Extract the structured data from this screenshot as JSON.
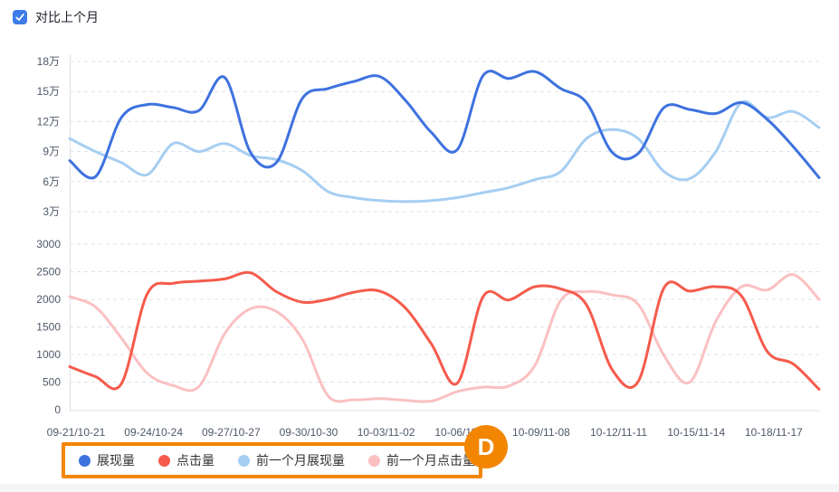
{
  "header": {
    "compare_label": "对比上个月",
    "checkbox_checked": true,
    "checkbox_color": "#3D7CE8"
  },
  "legend": {
    "items": [
      {
        "label": "展现量",
        "color": "#3E72DF"
      },
      {
        "label": "点击量",
        "color": "#F55B4C"
      },
      {
        "label": "前一个月展现量",
        "color": "#A6CEF2"
      },
      {
        "label": "前一个月点击量",
        "color": "#FAC0C2"
      }
    ]
  },
  "annotation": {
    "mark_label": "D",
    "color": "#F28600"
  },
  "chart_data": {
    "type": "line",
    "smooth": true,
    "grid": {
      "dashed": true,
      "color": "#DDE0E5",
      "axis_line_color": "#DDE0E5"
    },
    "text_color": "#4E5969",
    "points_per_series": 30,
    "x_tick_point_indices": [
      0,
      3,
      6,
      9,
      12,
      15,
      18,
      21,
      24,
      27
    ],
    "x_tick_labels": [
      "09-21/10-21",
      "09-24/10-24",
      "09-27/10-27",
      "09-30/10-30",
      "10-03/11-02",
      "10-06/11-05",
      "10-09/11-08",
      "10-12/11-11",
      "10-15/11-14",
      "10-18/11-17"
    ],
    "top_axis": {
      "min": 30000,
      "max": 180000,
      "tick_values": [
        180000,
        150000,
        120000,
        90000,
        60000,
        30000
      ],
      "tick_labels": [
        "18万",
        "15万",
        "12万",
        "9万",
        "6万",
        "3万"
      ]
    },
    "bottom_axis": {
      "min": 0,
      "max": 3000,
      "tick_values": [
        3000,
        2500,
        2000,
        1500,
        1000,
        500,
        0
      ],
      "tick_labels": [
        "3000",
        "2500",
        "2000",
        "1500",
        "1000",
        "500",
        "0"
      ]
    },
    "series": [
      {
        "name": "展现量",
        "axis": "top",
        "color": "#3E72DF",
        "values": [
          81000,
          65000,
          124000,
          137000,
          134000,
          131000,
          164000,
          89000,
          79000,
          143000,
          153000,
          160000,
          165000,
          141000,
          109000,
          92000,
          166000,
          163000,
          170000,
          153000,
          139000,
          89000,
          88000,
          134000,
          132000,
          128000,
          139000,
          122000,
          95000,
          64000
        ]
      },
      {
        "name": "点击量",
        "axis": "bottom",
        "color": "#F55B4C",
        "values": [
          780,
          600,
          470,
          2100,
          2290,
          2330,
          2370,
          2480,
          2140,
          1950,
          2000,
          2130,
          2150,
          1840,
          1190,
          480,
          2050,
          1990,
          2230,
          2190,
          1900,
          720,
          510,
          2210,
          2150,
          2230,
          2060,
          1050,
          830,
          370
        ]
      },
      {
        "name": "前一个月展现量",
        "axis": "top",
        "color": "#A6CEF2",
        "values": [
          103000,
          90000,
          79000,
          67000,
          98000,
          90000,
          98000,
          86000,
          82000,
          71000,
          50000,
          44000,
          41000,
          40000,
          41000,
          44000,
          49000,
          54000,
          62000,
          70000,
          103000,
          112000,
          103000,
          70000,
          63000,
          90000,
          139000,
          124000,
          130000,
          114000
        ]
      },
      {
        "name": "前一个月点击量",
        "axis": "bottom",
        "color": "#FAC0C2",
        "values": [
          2050,
          1860,
          1300,
          660,
          440,
          420,
          1380,
          1830,
          1780,
          1280,
          250,
          180,
          200,
          170,
          155,
          330,
          410,
          430,
          800,
          1980,
          2140,
          2080,
          1910,
          980,
          500,
          1600,
          2230,
          2170,
          2450,
          2000
        ]
      }
    ]
  }
}
